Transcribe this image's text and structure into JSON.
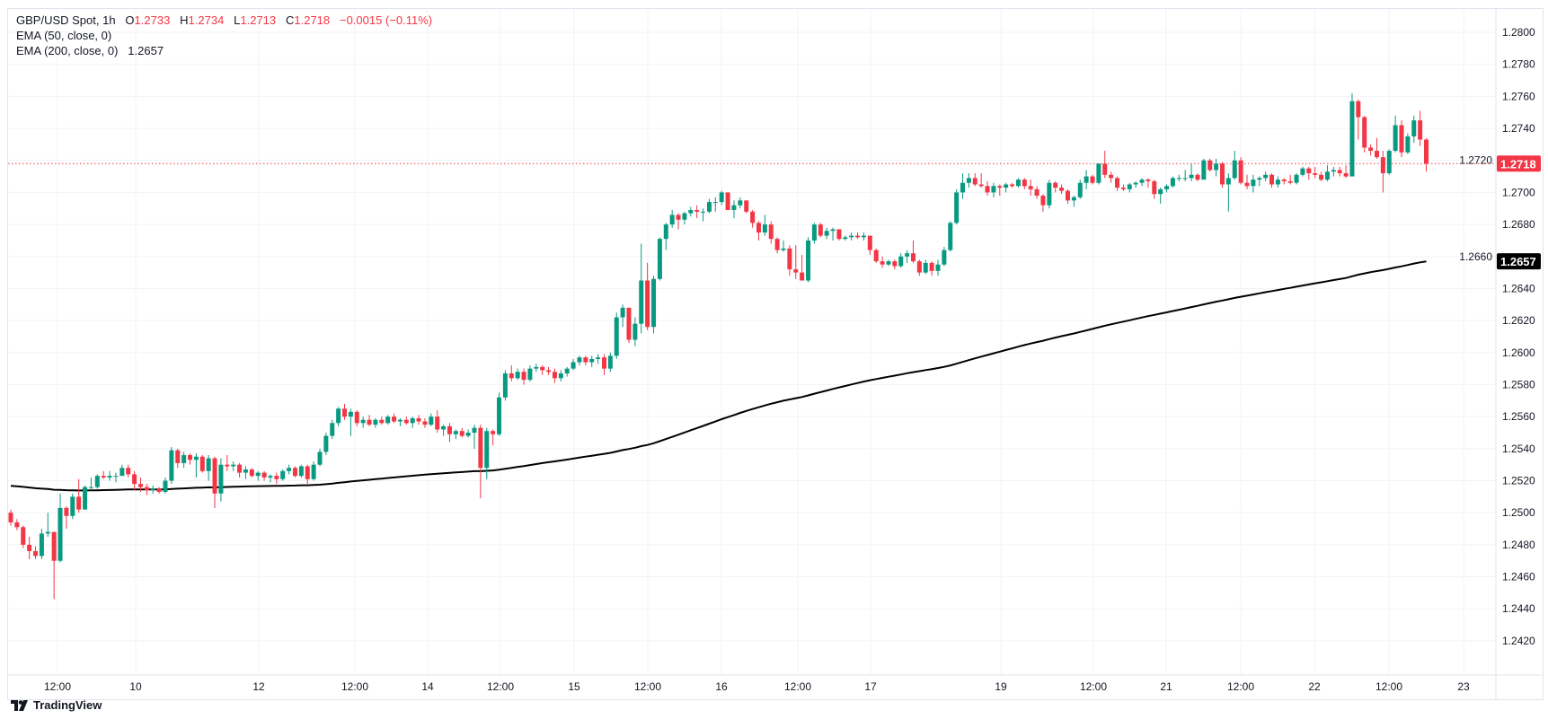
{
  "legend": {
    "symbol": "GBP/USD Spot, 1h",
    "open_label": "O",
    "open": "1.2733",
    "high_label": "H",
    "high": "1.2734",
    "low_label": "L",
    "low": "1.2713",
    "close_label": "C",
    "close": "1.2718",
    "change": "−0.0015 (−0.11%)",
    "ema50": "EMA (50, close, 0)",
    "ema200": "EMA (200, close, 0)",
    "ema200_value": "1.2657"
  },
  "branding": {
    "name": "TradingView",
    "icon": "tradingview-logo-icon"
  },
  "colors": {
    "up": "#089981",
    "down": "#F23645",
    "ema200": "#000000",
    "grid": "#f0f3fa",
    "text": "#131722"
  },
  "chart_data": {
    "type": "candlestick",
    "title": "GBP/USD Spot, 1h",
    "interval": "1h",
    "ylim": [
      1.2405,
      1.2815
    ],
    "grid": true,
    "y_ticks": [
      "1.2800",
      "1.2780",
      "1.2760",
      "1.2740",
      "1.2720",
      "1.2700",
      "1.2680",
      "1.2660",
      "1.2640",
      "1.2620",
      "1.2600",
      "1.2580",
      "1.2560",
      "1.2540",
      "1.2520",
      "1.2500",
      "1.2480",
      "1.2460",
      "1.2440",
      "1.2420"
    ],
    "x_ticks": [
      "12:00",
      "10",
      "12",
      "12:00",
      "14",
      "12:00",
      "15",
      "12:00",
      "16",
      "12:00",
      "17",
      "19",
      "12:00",
      "21",
      "12:00",
      "22",
      "12:00",
      "23"
    ],
    "last_price": {
      "value": "1.2718",
      "color": "#F23645"
    },
    "ema200_last": {
      "value": "1.2657",
      "color": "#000000"
    },
    "candles_ohlc": [
      [
        1.25,
        1.2502,
        1.2492,
        1.2494
      ],
      [
        1.2494,
        1.2496,
        1.2489,
        1.2491
      ],
      [
        1.2491,
        1.2492,
        1.2478,
        1.248
      ],
      [
        1.248,
        1.2485,
        1.2471,
        1.2476
      ],
      [
        1.2476,
        1.2479,
        1.2471,
        1.2473
      ],
      [
        1.2473,
        1.249,
        1.2471,
        1.2487
      ],
      [
        1.2487,
        1.25,
        1.2485,
        1.2488
      ],
      [
        1.2488,
        1.2488,
        1.2446,
        1.247
      ],
      [
        1.247,
        1.2512,
        1.2469,
        1.2503
      ],
      [
        1.2503,
        1.2504,
        1.249,
        1.2498
      ],
      [
        1.2498,
        1.2512,
        1.2496,
        1.251
      ],
      [
        1.251,
        1.2521,
        1.25,
        1.2502
      ],
      [
        1.2502,
        1.2517,
        1.2502,
        1.2516
      ],
      [
        1.2516,
        1.2522,
        1.2514,
        1.2516
      ],
      [
        1.2516,
        1.2524,
        1.2515,
        1.2523
      ],
      [
        1.2523,
        1.2526,
        1.2521,
        1.2522
      ],
      [
        1.2522,
        1.2526,
        1.252,
        1.2523
      ],
      [
        1.2523,
        1.2525,
        1.2519,
        1.2523
      ],
      [
        1.2523,
        1.253,
        1.2523,
        1.2528
      ],
      [
        1.2528,
        1.253,
        1.2522,
        1.2524
      ],
      [
        1.2524,
        1.2526,
        1.2514,
        1.2518
      ],
      [
        1.2518,
        1.2522,
        1.2513,
        1.2516
      ],
      [
        1.2516,
        1.2518,
        1.2511,
        1.2514
      ],
      [
        1.2514,
        1.2517,
        1.2512,
        1.2515
      ],
      [
        1.2515,
        1.2516,
        1.2512,
        1.2513
      ],
      [
        1.2513,
        1.2522,
        1.2512,
        1.252
      ],
      [
        1.252,
        1.2541,
        1.2518,
        1.2539
      ],
      [
        1.2539,
        1.254,
        1.2528,
        1.2531
      ],
      [
        1.2531,
        1.2538,
        1.2528,
        1.2536
      ],
      [
        1.2536,
        1.2537,
        1.253,
        1.2533
      ],
      [
        1.2533,
        1.2537,
        1.2522,
        1.2535
      ],
      [
        1.2535,
        1.2536,
        1.2525,
        1.2526
      ],
      [
        1.2526,
        1.2536,
        1.252,
        1.2534
      ],
      [
        1.2534,
        1.2535,
        1.2503,
        1.2512
      ],
      [
        1.2512,
        1.2534,
        1.2507,
        1.253
      ],
      [
        1.253,
        1.2536,
        1.2526,
        1.2529
      ],
      [
        1.2529,
        1.2532,
        1.2526,
        1.253
      ],
      [
        1.253,
        1.2531,
        1.2522,
        1.2525
      ],
      [
        1.2525,
        1.2529,
        1.2521,
        1.2527
      ],
      [
        1.2527,
        1.2528,
        1.2522,
        1.2523
      ],
      [
        1.2523,
        1.2526,
        1.252,
        1.2525
      ],
      [
        1.2525,
        1.2526,
        1.252,
        1.2522
      ],
      [
        1.2522,
        1.2524,
        1.2519,
        1.2523
      ],
      [
        1.2523,
        1.2525,
        1.2518,
        1.2521
      ],
      [
        1.2521,
        1.2527,
        1.252,
        1.2526
      ],
      [
        1.2526,
        1.253,
        1.2524,
        1.2528
      ],
      [
        1.2528,
        1.2529,
        1.2522,
        1.2523
      ],
      [
        1.2523,
        1.253,
        1.2522,
        1.2529
      ],
      [
        1.2529,
        1.253,
        1.2518,
        1.2521
      ],
      [
        1.2521,
        1.2532,
        1.252,
        1.253
      ],
      [
        1.253,
        1.254,
        1.2529,
        1.2538
      ],
      [
        1.2538,
        1.255,
        1.2536,
        1.2548
      ],
      [
        1.2548,
        1.2558,
        1.2546,
        1.2556
      ],
      [
        1.2556,
        1.2566,
        1.2554,
        1.2565
      ],
      [
        1.2565,
        1.2568,
        1.2558,
        1.256
      ],
      [
        1.256,
        1.2565,
        1.2548,
        1.2563
      ],
      [
        1.2563,
        1.2564,
        1.2554,
        1.2556
      ],
      [
        1.2556,
        1.256,
        1.2553,
        1.2558
      ],
      [
        1.2558,
        1.2561,
        1.2554,
        1.2555
      ],
      [
        1.2555,
        1.2559,
        1.2553,
        1.2558
      ],
      [
        1.2558,
        1.256,
        1.2555,
        1.2556
      ],
      [
        1.2556,
        1.2561,
        1.2555,
        1.256
      ],
      [
        1.256,
        1.2562,
        1.2556,
        1.2557
      ],
      [
        1.2557,
        1.2559,
        1.2554,
        1.2558
      ],
      [
        1.2558,
        1.256,
        1.2555,
        1.2556
      ],
      [
        1.2556,
        1.256,
        1.2553,
        1.2559
      ],
      [
        1.2559,
        1.2561,
        1.2555,
        1.2557
      ],
      [
        1.2557,
        1.2559,
        1.2553,
        1.2555
      ],
      [
        1.2555,
        1.2562,
        1.2554,
        1.256
      ],
      [
        1.256,
        1.2564,
        1.255,
        1.2552
      ],
      [
        1.2552,
        1.2555,
        1.2548,
        1.2554
      ],
      [
        1.2554,
        1.2556,
        1.2544,
        1.2549
      ],
      [
        1.2549,
        1.2552,
        1.2546,
        1.2551
      ],
      [
        1.2551,
        1.2553,
        1.2547,
        1.2548
      ],
      [
        1.2548,
        1.2552,
        1.2547,
        1.255
      ],
      [
        1.255,
        1.2555,
        1.254,
        1.2553
      ],
      [
        1.2553,
        1.2555,
        1.2509,
        1.2528
      ],
      [
        1.2528,
        1.2553,
        1.2521,
        1.2551
      ],
      [
        1.2551,
        1.2552,
        1.2542,
        1.2549
      ],
      [
        1.2549,
        1.2575,
        1.2548,
        1.2572
      ],
      [
        1.2572,
        1.2589,
        1.257,
        1.2587
      ],
      [
        1.2587,
        1.2592,
        1.2582,
        1.2584
      ],
      [
        1.2584,
        1.259,
        1.2583,
        1.2588
      ],
      [
        1.2588,
        1.259,
        1.258,
        1.2583
      ],
      [
        1.2583,
        1.2592,
        1.2582,
        1.259
      ],
      [
        1.259,
        1.2593,
        1.2588,
        1.2591
      ],
      [
        1.2591,
        1.2592,
        1.2586,
        1.2589
      ],
      [
        1.2589,
        1.2591,
        1.2586,
        1.2588
      ],
      [
        1.2588,
        1.259,
        1.2581,
        1.2584
      ],
      [
        1.2584,
        1.2589,
        1.2582,
        1.2587
      ],
      [
        1.2587,
        1.2591,
        1.2585,
        1.259
      ],
      [
        1.259,
        1.2596,
        1.2589,
        1.2594
      ],
      [
        1.2594,
        1.2598,
        1.2592,
        1.2597
      ],
      [
        1.2597,
        1.2598,
        1.2592,
        1.2594
      ],
      [
        1.2594,
        1.2598,
        1.2591,
        1.2596
      ],
      [
        1.2596,
        1.2599,
        1.2593,
        1.2597
      ],
      [
        1.2597,
        1.2599,
        1.2586,
        1.259
      ],
      [
        1.259,
        1.26,
        1.2588,
        1.2598
      ],
      [
        1.2598,
        1.2625,
        1.2596,
        1.2622
      ],
      [
        1.2622,
        1.263,
        1.2616,
        1.2628
      ],
      [
        1.2628,
        1.2628,
        1.2606,
        1.2608
      ],
      [
        1.2608,
        1.2622,
        1.2604,
        1.2618
      ],
      [
        1.2618,
        1.2668,
        1.2612,
        1.2645
      ],
      [
        1.2645,
        1.2656,
        1.2614,
        1.2616
      ],
      [
        1.2616,
        1.2648,
        1.2612,
        1.2646
      ],
      [
        1.2646,
        1.2672,
        1.2645,
        1.2671
      ],
      [
        1.2671,
        1.2681,
        1.2664,
        1.268
      ],
      [
        1.268,
        1.2689,
        1.2678,
        1.2686
      ],
      [
        1.2686,
        1.2687,
        1.2677,
        1.2683
      ],
      [
        1.2683,
        1.2688,
        1.268,
        1.2687
      ],
      [
        1.2687,
        1.2691,
        1.2685,
        1.2689
      ],
      [
        1.2689,
        1.2692,
        1.2684,
        1.2688
      ],
      [
        1.2688,
        1.269,
        1.2682,
        1.2688
      ],
      [
        1.2688,
        1.2696,
        1.2687,
        1.2694
      ],
      [
        1.2694,
        1.2697,
        1.2688,
        1.2694
      ],
      [
        1.2694,
        1.2701,
        1.2692,
        1.27
      ],
      [
        1.27,
        1.27,
        1.2689,
        1.2689
      ],
      [
        1.2689,
        1.2695,
        1.2684,
        1.2692
      ],
      [
        1.2692,
        1.2697,
        1.269,
        1.2695
      ],
      [
        1.2695,
        1.2695,
        1.2687,
        1.2688
      ],
      [
        1.2688,
        1.2689,
        1.2678,
        1.2681
      ],
      [
        1.2681,
        1.2682,
        1.267,
        1.2675
      ],
      [
        1.2675,
        1.2686,
        1.2673,
        1.268
      ],
      [
        1.268,
        1.2682,
        1.2668,
        1.2671
      ],
      [
        1.2671,
        1.2672,
        1.2662,
        1.2664
      ],
      [
        1.2664,
        1.267,
        1.2663,
        1.2665
      ],
      [
        1.2665,
        1.2667,
        1.2648,
        1.2652
      ],
      [
        1.2652,
        1.2667,
        1.2646,
        1.265
      ],
      [
        1.265,
        1.2661,
        1.2645,
        1.2645
      ],
      [
        1.2645,
        1.2672,
        1.2644,
        1.267
      ],
      [
        1.267,
        1.2681,
        1.2668,
        1.268
      ],
      [
        1.268,
        1.2681,
        1.2672,
        1.2673
      ],
      [
        1.2673,
        1.2678,
        1.2671,
        1.2676
      ],
      [
        1.2676,
        1.2678,
        1.267,
        1.2677
      ],
      [
        1.2677,
        1.2677,
        1.267,
        1.2671
      ],
      [
        1.2671,
        1.2673,
        1.267,
        1.2672
      ],
      [
        1.2672,
        1.2675,
        1.267,
        1.2673
      ],
      [
        1.2673,
        1.2675,
        1.2671,
        1.2672
      ],
      [
        1.2672,
        1.2675,
        1.267,
        1.2673
      ],
      [
        1.2673,
        1.2673,
        1.2661,
        1.2664
      ],
      [
        1.2664,
        1.2665,
        1.2656,
        1.2657
      ],
      [
        1.2657,
        1.266,
        1.2653,
        1.2655
      ],
      [
        1.2655,
        1.2658,
        1.2654,
        1.2657
      ],
      [
        1.2657,
        1.2658,
        1.2652,
        1.2654
      ],
      [
        1.2654,
        1.2662,
        1.2653,
        1.266
      ],
      [
        1.266,
        1.2664,
        1.2656,
        1.2662
      ],
      [
        1.2662,
        1.267,
        1.2656,
        1.2657
      ],
      [
        1.2657,
        1.2658,
        1.2648,
        1.265
      ],
      [
        1.265,
        1.2658,
        1.2649,
        1.2656
      ],
      [
        1.2656,
        1.2657,
        1.2648,
        1.2651
      ],
      [
        1.2651,
        1.2658,
        1.2648,
        1.2655
      ],
      [
        1.2655,
        1.2666,
        1.2654,
        1.2664
      ],
      [
        1.2664,
        1.2682,
        1.2663,
        1.2681
      ],
      [
        1.2681,
        1.2702,
        1.268,
        1.27
      ],
      [
        1.27,
        1.2712,
        1.2696,
        1.2706
      ],
      [
        1.2706,
        1.2712,
        1.2703,
        1.2709
      ],
      [
        1.2709,
        1.2712,
        1.2704,
        1.2705
      ],
      [
        1.2705,
        1.2712,
        1.2703,
        1.2704
      ],
      [
        1.2704,
        1.2707,
        1.2698,
        1.27
      ],
      [
        1.27,
        1.2706,
        1.2697,
        1.2704
      ],
      [
        1.2704,
        1.2705,
        1.2698,
        1.2703
      ],
      [
        1.2703,
        1.2706,
        1.27,
        1.2705
      ],
      [
        1.2705,
        1.2706,
        1.2703,
        1.2704
      ],
      [
        1.2704,
        1.2709,
        1.2703,
        1.2708
      ],
      [
        1.2708,
        1.2709,
        1.2702,
        1.2704
      ],
      [
        1.2704,
        1.2708,
        1.2698,
        1.2702
      ],
      [
        1.2702,
        1.2704,
        1.2696,
        1.2698
      ],
      [
        1.2698,
        1.2699,
        1.2688,
        1.2692
      ],
      [
        1.2692,
        1.2708,
        1.269,
        1.2706
      ],
      [
        1.2706,
        1.2707,
        1.27,
        1.2703
      ],
      [
        1.2703,
        1.2705,
        1.2699,
        1.2701
      ],
      [
        1.2701,
        1.2702,
        1.2693,
        1.2695
      ],
      [
        1.2695,
        1.2698,
        1.2691,
        1.2697
      ],
      [
        1.2697,
        1.2708,
        1.2696,
        1.2706
      ],
      [
        1.2706,
        1.2714,
        1.2702,
        1.271
      ],
      [
        1.271,
        1.2711,
        1.2705,
        1.2706
      ],
      [
        1.2706,
        1.2718,
        1.2705,
        1.2718
      ],
      [
        1.2718,
        1.2726,
        1.2709,
        1.2711
      ],
      [
        1.2711,
        1.2713,
        1.2706,
        1.2709
      ],
      [
        1.2709,
        1.271,
        1.2701,
        1.2703
      ],
      [
        1.2703,
        1.2705,
        1.2701,
        1.2702
      ],
      [
        1.2702,
        1.2706,
        1.27,
        1.2705
      ],
      [
        1.2705,
        1.2707,
        1.2703,
        1.2706
      ],
      [
        1.2706,
        1.2709,
        1.2704,
        1.2708
      ],
      [
        1.2708,
        1.2709,
        1.2703,
        1.2707
      ],
      [
        1.2707,
        1.2708,
        1.2696,
        1.2699
      ],
      [
        1.2699,
        1.2703,
        1.2693,
        1.2702
      ],
      [
        1.2702,
        1.2705,
        1.27,
        1.2704
      ],
      [
        1.2704,
        1.271,
        1.2703,
        1.2709
      ],
      [
        1.2709,
        1.2711,
        1.2707,
        1.2709
      ],
      [
        1.2709,
        1.2714,
        1.2707,
        1.2709
      ],
      [
        1.2709,
        1.2718,
        1.2707,
        1.2711
      ],
      [
        1.2711,
        1.2712,
        1.2707,
        1.2708
      ],
      [
        1.2708,
        1.2721,
        1.2708,
        1.272
      ],
      [
        1.272,
        1.2721,
        1.2713,
        1.2714
      ],
      [
        1.2714,
        1.2721,
        1.271,
        1.2718
      ],
      [
        1.2718,
        1.2719,
        1.2703,
        1.2705
      ],
      [
        1.2705,
        1.2712,
        1.2688,
        1.2709
      ],
      [
        1.2709,
        1.2726,
        1.2708,
        1.272
      ],
      [
        1.272,
        1.2722,
        1.2705,
        1.2706
      ],
      [
        1.2706,
        1.2711,
        1.2702,
        1.2704
      ],
      [
        1.2704,
        1.2711,
        1.27,
        1.2708
      ],
      [
        1.2708,
        1.271,
        1.2704,
        1.2709
      ],
      [
        1.2709,
        1.2713,
        1.2707,
        1.2711
      ],
      [
        1.2711,
        1.2712,
        1.2703,
        1.2705
      ],
      [
        1.2705,
        1.271,
        1.2703,
        1.2708
      ],
      [
        1.2708,
        1.2709,
        1.2705,
        1.2707
      ],
      [
        1.2707,
        1.2711,
        1.2705,
        1.2706
      ],
      [
        1.2706,
        1.2712,
        1.2705,
        1.2711
      ],
      [
        1.2711,
        1.2716,
        1.271,
        1.2715
      ],
      [
        1.2715,
        1.2716,
        1.2708,
        1.2712
      ],
      [
        1.2712,
        1.2716,
        1.2709,
        1.2711
      ],
      [
        1.2711,
        1.2713,
        1.2707,
        1.2708
      ],
      [
        1.2708,
        1.2717,
        1.2707,
        1.2713
      ],
      [
        1.2713,
        1.2716,
        1.271,
        1.2714
      ],
      [
        1.2714,
        1.2716,
        1.271,
        1.2712
      ],
      [
        1.2712,
        1.2717,
        1.2709,
        1.271
      ],
      [
        1.271,
        1.2762,
        1.271,
        1.2757
      ],
      [
        1.2757,
        1.2758,
        1.2733,
        1.2747
      ],
      [
        1.2747,
        1.2748,
        1.2725,
        1.2728
      ],
      [
        1.2728,
        1.273,
        1.2723,
        1.2726
      ],
      [
        1.2726,
        1.2734,
        1.2721,
        1.2722
      ],
      [
        1.2722,
        1.2726,
        1.27,
        1.2712
      ],
      [
        1.2712,
        1.2727,
        1.2711,
        1.2726
      ],
      [
        1.2726,
        1.2748,
        1.2725,
        1.2742
      ],
      [
        1.2742,
        1.2745,
        1.2722,
        1.2725
      ],
      [
        1.2725,
        1.2737,
        1.2724,
        1.2735
      ],
      [
        1.2735,
        1.2748,
        1.2731,
        1.2745
      ],
      [
        1.2745,
        1.2751,
        1.2729,
        1.2733
      ],
      [
        1.2733,
        1.2734,
        1.2713,
        1.2718
      ]
    ]
  }
}
